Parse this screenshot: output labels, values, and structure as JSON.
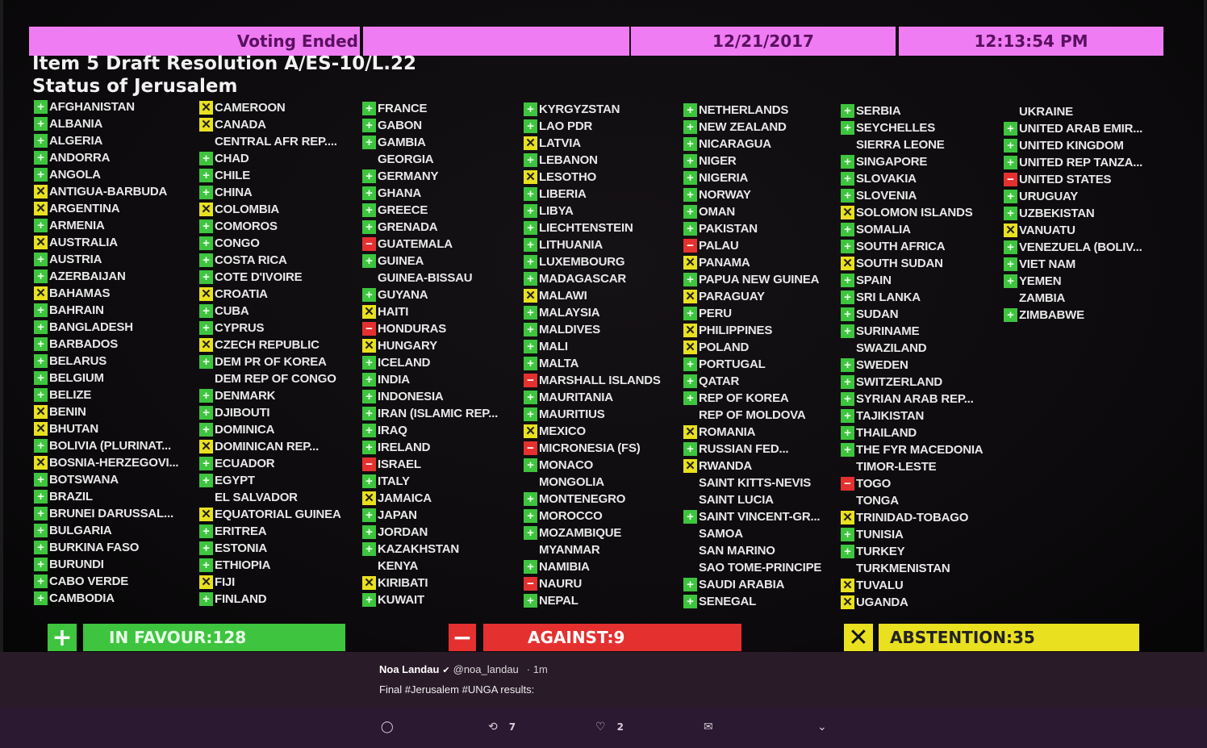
{
  "header": {
    "status": "Voting Ended",
    "blank": "",
    "date": "12/21/2017",
    "time": "12:13:54 PM"
  },
  "item_title": "Item 5 Draft Resolution A/ES-10/L.22",
  "subject": "Status of Jerusalem",
  "colors": {
    "yes": "#3ec43e",
    "no": "#e53030",
    "abstain": "#e9e020",
    "header": "#f07cf3"
  },
  "columns": [
    [
      [
        "AFGHANISTAN",
        "Y"
      ],
      [
        "ALBANIA",
        "Y"
      ],
      [
        "ALGERIA",
        "Y"
      ],
      [
        "ANDORRA",
        "Y"
      ],
      [
        "ANGOLA",
        "Y"
      ],
      [
        "ANTIGUA-BARBUDA",
        "A"
      ],
      [
        "ARGENTINA",
        "A"
      ],
      [
        "ARMENIA",
        "Y"
      ],
      [
        "AUSTRALIA",
        "A"
      ],
      [
        "AUSTRIA",
        "Y"
      ],
      [
        "AZERBAIJAN",
        "Y"
      ],
      [
        "BAHAMAS",
        "A"
      ],
      [
        "BAHRAIN",
        "Y"
      ],
      [
        "BANGLADESH",
        "Y"
      ],
      [
        "BARBADOS",
        "Y"
      ],
      [
        "BELARUS",
        "Y"
      ],
      [
        "BELGIUM",
        "Y"
      ],
      [
        "BELIZE",
        "Y"
      ],
      [
        "BENIN",
        "A"
      ],
      [
        "BHUTAN",
        "A"
      ],
      [
        "BOLIVIA (PLURINAT...",
        "Y"
      ],
      [
        "BOSNIA-HERZEGOVI...",
        "A"
      ],
      [
        "BOTSWANA",
        "Y"
      ],
      [
        "BRAZIL",
        "Y"
      ],
      [
        "BRUNEI DARUSSAL...",
        "Y"
      ],
      [
        "BULGARIA",
        "Y"
      ],
      [
        "BURKINA FASO",
        "Y"
      ],
      [
        "BURUNDI",
        "Y"
      ],
      [
        "CABO VERDE",
        "Y"
      ],
      [
        "CAMBODIA",
        "Y"
      ]
    ],
    [
      [
        "CAMEROON",
        "A"
      ],
      [
        "CANADA",
        "A"
      ],
      [
        "CENTRAL AFR REP....",
        ""
      ],
      [
        "CHAD",
        "Y"
      ],
      [
        "CHILE",
        "Y"
      ],
      [
        "CHINA",
        "Y"
      ],
      [
        "COLOMBIA",
        "A"
      ],
      [
        "COMOROS",
        "Y"
      ],
      [
        "CONGO",
        "Y"
      ],
      [
        "COSTA RICA",
        "Y"
      ],
      [
        "COTE D'IVOIRE",
        "Y"
      ],
      [
        "CROATIA",
        "A"
      ],
      [
        "CUBA",
        "Y"
      ],
      [
        "CYPRUS",
        "Y"
      ],
      [
        "CZECH REPUBLIC",
        "A"
      ],
      [
        "DEM PR OF KOREA",
        "Y"
      ],
      [
        "DEM REP OF CONGO",
        ""
      ],
      [
        "DENMARK",
        "Y"
      ],
      [
        "DJIBOUTI",
        "Y"
      ],
      [
        "DOMINICA",
        "Y"
      ],
      [
        "DOMINICAN REP...",
        "A"
      ],
      [
        "ECUADOR",
        "Y"
      ],
      [
        "EGYPT",
        "Y"
      ],
      [
        "EL SALVADOR",
        ""
      ],
      [
        "EQUATORIAL GUINEA",
        "A"
      ],
      [
        "ERITREA",
        "Y"
      ],
      [
        "ESTONIA",
        "Y"
      ],
      [
        "ETHIOPIA",
        "Y"
      ],
      [
        "FIJI",
        "A"
      ],
      [
        "FINLAND",
        "Y"
      ]
    ],
    [
      [
        "FRANCE",
        "Y"
      ],
      [
        "GABON",
        "Y"
      ],
      [
        "GAMBIA",
        "Y"
      ],
      [
        "GEORGIA",
        ""
      ],
      [
        "GERMANY",
        "Y"
      ],
      [
        "GHANA",
        "Y"
      ],
      [
        "GREECE",
        "Y"
      ],
      [
        "GRENADA",
        "Y"
      ],
      [
        "GUATEMALA",
        "N"
      ],
      [
        "GUINEA",
        "Y"
      ],
      [
        "GUINEA-BISSAU",
        ""
      ],
      [
        "GUYANA",
        "Y"
      ],
      [
        "HAITI",
        "A"
      ],
      [
        "HONDURAS",
        "N"
      ],
      [
        "HUNGARY",
        "A"
      ],
      [
        "ICELAND",
        "Y"
      ],
      [
        "INDIA",
        "Y"
      ],
      [
        "INDONESIA",
        "Y"
      ],
      [
        "IRAN (ISLAMIC REP...",
        "Y"
      ],
      [
        "IRAQ",
        "Y"
      ],
      [
        "IRELAND",
        "Y"
      ],
      [
        "ISRAEL",
        "N"
      ],
      [
        "ITALY",
        "Y"
      ],
      [
        "JAMAICA",
        "A"
      ],
      [
        "JAPAN",
        "Y"
      ],
      [
        "JORDAN",
        "Y"
      ],
      [
        "KAZAKHSTAN",
        "Y"
      ],
      [
        "KENYA",
        ""
      ],
      [
        "KIRIBATI",
        "A"
      ],
      [
        "KUWAIT",
        "Y"
      ]
    ],
    [
      [
        "KYRGYZSTAN",
        "Y"
      ],
      [
        "LAO PDR",
        "Y"
      ],
      [
        "LATVIA",
        "A"
      ],
      [
        "LEBANON",
        "Y"
      ],
      [
        "LESOTHO",
        "A"
      ],
      [
        "LIBERIA",
        "Y"
      ],
      [
        "LIBYA",
        "Y"
      ],
      [
        "LIECHTENSTEIN",
        "Y"
      ],
      [
        "LITHUANIA",
        "Y"
      ],
      [
        "LUXEMBOURG",
        "Y"
      ],
      [
        "MADAGASCAR",
        "Y"
      ],
      [
        "MALAWI",
        "A"
      ],
      [
        "MALAYSIA",
        "Y"
      ],
      [
        "MALDIVES",
        "Y"
      ],
      [
        "MALI",
        "Y"
      ],
      [
        "MALTA",
        "Y"
      ],
      [
        "MARSHALL ISLANDS",
        "N"
      ],
      [
        "MAURITANIA",
        "Y"
      ],
      [
        "MAURITIUS",
        "Y"
      ],
      [
        "MEXICO",
        "A"
      ],
      [
        "MICRONESIA (FS)",
        "N"
      ],
      [
        "MONACO",
        "Y"
      ],
      [
        "MONGOLIA",
        ""
      ],
      [
        "MONTENEGRO",
        "Y"
      ],
      [
        "MOROCCO",
        "Y"
      ],
      [
        "MOZAMBIQUE",
        "Y"
      ],
      [
        "MYANMAR",
        ""
      ],
      [
        "NAMIBIA",
        "Y"
      ],
      [
        "NAURU",
        "N"
      ],
      [
        "NEPAL",
        "Y"
      ]
    ],
    [
      [
        "NETHERLANDS",
        "Y"
      ],
      [
        "NEW ZEALAND",
        "Y"
      ],
      [
        "NICARAGUA",
        "Y"
      ],
      [
        "NIGER",
        "Y"
      ],
      [
        "NIGERIA",
        "Y"
      ],
      [
        "NORWAY",
        "Y"
      ],
      [
        "OMAN",
        "Y"
      ],
      [
        "PAKISTAN",
        "Y"
      ],
      [
        "PALAU",
        "N"
      ],
      [
        "PANAMA",
        "A"
      ],
      [
        "PAPUA NEW GUINEA",
        "Y"
      ],
      [
        "PARAGUAY",
        "A"
      ],
      [
        "PERU",
        "Y"
      ],
      [
        "PHILIPPINES",
        "A"
      ],
      [
        "POLAND",
        "A"
      ],
      [
        "PORTUGAL",
        "Y"
      ],
      [
        "QATAR",
        "Y"
      ],
      [
        "REP OF KOREA",
        "Y"
      ],
      [
        "REP OF MOLDOVA",
        ""
      ],
      [
        "ROMANIA",
        "A"
      ],
      [
        "RUSSIAN FED...",
        "Y"
      ],
      [
        "RWANDA",
        "A"
      ],
      [
        "SAINT KITTS-NEVIS",
        ""
      ],
      [
        "SAINT LUCIA",
        ""
      ],
      [
        "SAINT VINCENT-GR...",
        "Y"
      ],
      [
        "SAMOA",
        ""
      ],
      [
        "SAN MARINO",
        ""
      ],
      [
        "SAO TOME-PRINCIPE",
        ""
      ],
      [
        "SAUDI ARABIA",
        "Y"
      ],
      [
        "SENEGAL",
        "Y"
      ]
    ],
    [
      [
        "SERBIA",
        "Y"
      ],
      [
        "SEYCHELLES",
        "Y"
      ],
      [
        "SIERRA LEONE",
        ""
      ],
      [
        "SINGAPORE",
        "Y"
      ],
      [
        "SLOVAKIA",
        "Y"
      ],
      [
        "SLOVENIA",
        "Y"
      ],
      [
        "SOLOMON ISLANDS",
        "A"
      ],
      [
        "SOMALIA",
        "Y"
      ],
      [
        "SOUTH AFRICA",
        "Y"
      ],
      [
        "SOUTH SUDAN",
        "A"
      ],
      [
        "SPAIN",
        "Y"
      ],
      [
        "SRI LANKA",
        "Y"
      ],
      [
        "SUDAN",
        "Y"
      ],
      [
        "SURINAME",
        "Y"
      ],
      [
        "SWAZILAND",
        ""
      ],
      [
        "SWEDEN",
        "Y"
      ],
      [
        "SWITZERLAND",
        "Y"
      ],
      [
        "SYRIAN ARAB REP...",
        "Y"
      ],
      [
        "TAJIKISTAN",
        "Y"
      ],
      [
        "THAILAND",
        "Y"
      ],
      [
        "THE FYR MACEDONIA",
        "Y"
      ],
      [
        "TIMOR-LESTE",
        ""
      ],
      [
        "TOGO",
        "N"
      ],
      [
        "TONGA",
        ""
      ],
      [
        "TRINIDAD-TOBAGO",
        "A"
      ],
      [
        "TUNISIA",
        "Y"
      ],
      [
        "TURKEY",
        "Y"
      ],
      [
        "TURKMENISTAN",
        ""
      ],
      [
        "TUVALU",
        "A"
      ],
      [
        "UGANDA",
        "A"
      ]
    ],
    [
      [
        "UKRAINE",
        ""
      ],
      [
        "UNITED ARAB EMIR...",
        "Y"
      ],
      [
        "UNITED KINGDOM",
        "Y"
      ],
      [
        "UNITED REP TANZA...",
        "Y"
      ],
      [
        "UNITED STATES",
        "N"
      ],
      [
        "URUGUAY",
        "Y"
      ],
      [
        "UZBEKISTAN",
        "Y"
      ],
      [
        "VANUATU",
        "A"
      ],
      [
        "VENEZUELA (BOLIV...",
        "Y"
      ],
      [
        "VIET NAM",
        "Y"
      ],
      [
        "YEMEN",
        "Y"
      ],
      [
        "ZAMBIA",
        ""
      ],
      [
        "ZIMBABWE",
        "Y"
      ]
    ]
  ],
  "totals": {
    "in_favour": "IN FAVOUR:128",
    "against": "AGAINST:9",
    "abstention": "ABSTENTION:35"
  },
  "tweet": {
    "author": "Noa Landau",
    "handle": "@noa_landau",
    "time": "· 1m",
    "text": "Final #Jerusalem #UNGA results:",
    "retweets": "7",
    "likes": "2"
  }
}
